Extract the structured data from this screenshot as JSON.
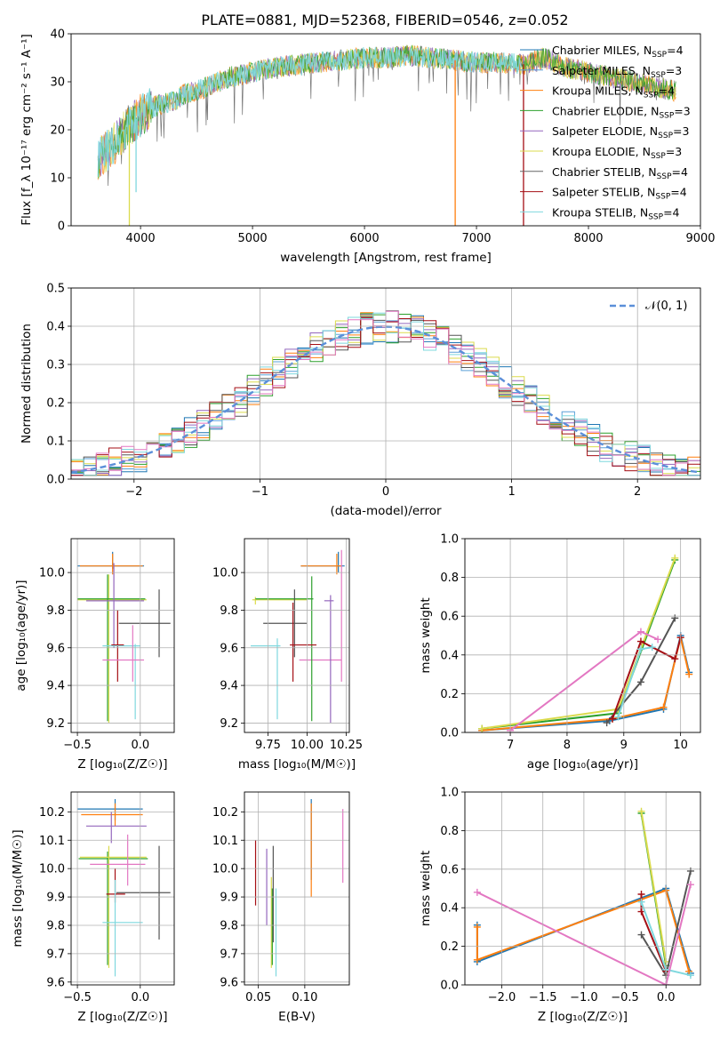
{
  "page_title": "PLATE=0881, MJD=52368, FIBERID=0546, z=0.052",
  "colors": {
    "Chabrier MILES": "#1f77b4",
    "Salpeter MILES": "#5aa0d8",
    "Kroupa MILES": "#ff7f0e",
    "Chabrier ELODIE": "#2ca02c",
    "Salpeter ELODIE": "#9467bd",
    "Kroupa ELODIE": "#dbdb4d",
    "Chabrier STELIB": "#555555",
    "Salpeter STELIB": "#a50f15",
    "Kroupa STELIB": "#7fd8de",
    "pink": "#e377c2",
    "normal_curve": "#5b8fd9"
  },
  "chart_data": [
    {
      "id": "spectrum",
      "type": "line",
      "title": "PLATE=0881, MJD=52368, FIBERID=0546, z=0.052",
      "xlabel": "wavelength [Angstrom, rest frame]",
      "ylabel": "Flux [f_λ 10⁻¹⁷ erg cm⁻² s⁻¹ A⁻¹]",
      "xlim": [
        3380,
        9000
      ],
      "ylim": [
        0,
        40
      ],
      "xticks": [
        "4000",
        "5000",
        "6000",
        "7000",
        "8000",
        "9000"
      ],
      "yticks": [
        "0",
        "10",
        "20",
        "30",
        "40"
      ],
      "grid": false,
      "legend_position": "right",
      "series": [
        {
          "name": "Chabrier MILES",
          "nssp": "4"
        },
        {
          "name": "Salpeter MILES",
          "nssp": "3"
        },
        {
          "name": "Kroupa MILES",
          "nssp": "4"
        },
        {
          "name": "Chabrier ELODIE",
          "nssp": "3"
        },
        {
          "name": "Salpeter ELODIE",
          "nssp": "3"
        },
        {
          "name": "Kroupa ELODIE",
          "nssp": "3"
        },
        {
          "name": "Chabrier STELIB",
          "nssp": "4"
        },
        {
          "name": "Salpeter STELIB",
          "nssp": "4"
        },
        {
          "name": "Kroupa STELIB",
          "nssp": "4"
        }
      ],
      "continuum": {
        "x": [
          3620,
          3700,
          3800,
          3900,
          4000,
          4100,
          4200,
          4300,
          4400,
          4600,
          4800,
          5000,
          5200,
          5400,
          5600,
          5800,
          6000,
          6200,
          6400,
          6600,
          6800,
          7000,
          7200,
          7400,
          7600,
          7800,
          8000,
          8200,
          8400,
          8600,
          8780
        ],
        "y": [
          14,
          15.5,
          18,
          21,
          23,
          24.5,
          25.5,
          26,
          27.5,
          29,
          31,
          32,
          33,
          33.5,
          34,
          34.5,
          35,
          35,
          35.5,
          35,
          34.5,
          34,
          34,
          33.5,
          35,
          33,
          32,
          31,
          30,
          29,
          28
        ]
      },
      "spikes": [
        {
          "x": 3900,
          "y_low": 0,
          "series": "Kroupa ELODIE"
        },
        {
          "x": 3960,
          "y_low": 7,
          "series": "Kroupa STELIB"
        },
        {
          "x": 6810,
          "y_low": 0,
          "series": "Kroupa MILES"
        },
        {
          "x": 7420,
          "y_low": 0,
          "series": "Salpeter STELIB"
        }
      ]
    },
    {
      "id": "residuals",
      "type": "bar",
      "title": "",
      "xlabel": "(data-model)/error",
      "ylabel": "Normed distribution",
      "xlim": [
        -2.5,
        2.5
      ],
      "ylim": [
        0,
        0.5
      ],
      "xticks": [
        "−2",
        "−1",
        "0",
        "1",
        "2"
      ],
      "yticks": [
        "0.0",
        "0.1",
        "0.2",
        "0.3",
        "0.4",
        "0.5"
      ],
      "grid": true,
      "legend_position": "top-right",
      "legend_label": "𝒩(0, 1)",
      "bin_width": 0.1
    },
    {
      "id": "age_vs_Z",
      "type": "scatter",
      "xlabel": "Z [log₁₀(Z/Z☉)]",
      "ylabel": "age  [log₁₀(age/yr)]",
      "xlim": [
        -0.55,
        0.27
      ],
      "ylim": [
        9.15,
        10.18
      ],
      "xticks": [
        "−0.5",
        "0.0"
      ],
      "yticks": [
        "9.2",
        "9.4",
        "9.6",
        "9.8",
        "10.0"
      ],
      "grid": true,
      "points": [
        {
          "series": "Chabrier MILES",
          "x": -0.22,
          "y": 10.035,
          "xlo": -0.5,
          "xhi": 0.03,
          "ylo": 10.02,
          "yhi": 10.11
        },
        {
          "series": "Kroupa MILES",
          "x": -0.22,
          "y": 10.035,
          "xlo": -0.48,
          "xhi": 0.02,
          "ylo": 9.99,
          "yhi": 10.1
        },
        {
          "series": "Kroupa ELODIE",
          "x": -0.25,
          "y": 9.855,
          "xlo": -0.5,
          "xhi": 0.05,
          "ylo": 9.2,
          "yhi": 9.99
        },
        {
          "series": "Chabrier ELODIE",
          "x": -0.26,
          "y": 9.86,
          "xlo": -0.5,
          "xhi": 0.04,
          "ylo": 9.21,
          "yhi": 9.99
        },
        {
          "series": "Salpeter ELODIE",
          "x": -0.21,
          "y": 9.85,
          "xlo": -0.43,
          "xhi": 0.03,
          "ylo": 9.6,
          "yhi": 10.05
        },
        {
          "series": "Chabrier STELIB",
          "x": 0.15,
          "y": 9.73,
          "xlo": -0.17,
          "xhi": 0.24,
          "ylo": 9.55,
          "yhi": 9.91
        },
        {
          "series": "Salpeter STELIB",
          "x": -0.18,
          "y": 9.615,
          "xlo": -0.23,
          "xhi": -0.13,
          "ylo": 9.42,
          "yhi": 9.8
        },
        {
          "series": "Kroupa STELIB",
          "x": -0.04,
          "y": 9.61,
          "xlo": -0.3,
          "xhi": 0.0,
          "ylo": 9.22,
          "yhi": 9.62
        },
        {
          "series": "pink",
          "x": -0.06,
          "y": 9.535,
          "xlo": -0.3,
          "xhi": 0.03,
          "ylo": 9.42,
          "yhi": 9.72
        }
      ]
    },
    {
      "id": "age_vs_mass",
      "type": "scatter",
      "xlabel": "mass [log₁₀(M/M☉)]",
      "ylabel": "",
      "xlim": [
        9.6,
        10.27
      ],
      "ylim": [
        9.15,
        10.18
      ],
      "xticks": [
        "9.75",
        "10.00",
        "10.25"
      ],
      "yticks": [
        "9.2",
        "9.4",
        "9.6",
        "9.8",
        "10.0"
      ],
      "grid": true,
      "points": [
        {
          "series": "Chabrier MILES",
          "x": 10.2,
          "y": 10.035,
          "xlo": 9.96,
          "xhi": 10.24,
          "ylo": 10.0,
          "yhi": 10.11
        },
        {
          "series": "Kroupa MILES",
          "x": 10.19,
          "y": 10.035,
          "xlo": 9.96,
          "xhi": 10.22,
          "ylo": 9.99,
          "yhi": 10.1
        },
        {
          "series": "pink",
          "x": 10.22,
          "y": 9.535,
          "xlo": 9.95,
          "xhi": 10.22,
          "ylo": 9.42,
          "yhi": 10.12
        },
        {
          "series": "Kroupa ELODIE",
          "x": 9.67,
          "y": 9.855,
          "xlo": 9.65,
          "xhi": 10.0,
          "ylo": 9.83,
          "yhi": 9.87
        },
        {
          "series": "Chabrier ELODIE",
          "x": 10.03,
          "y": 9.86,
          "xlo": 9.67,
          "xhi": 10.04,
          "ylo": 9.21,
          "yhi": 9.98
        },
        {
          "series": "Salpeter ELODIE",
          "x": 10.15,
          "y": 9.85,
          "xlo": 10.11,
          "xhi": 10.17,
          "ylo": 9.2,
          "yhi": 9.88
        },
        {
          "series": "Chabrier STELIB",
          "x": 9.92,
          "y": 9.73,
          "xlo": 9.72,
          "xhi": 10.0,
          "ylo": 9.55,
          "yhi": 9.91
        },
        {
          "series": "Salpeter STELIB",
          "x": 9.91,
          "y": 9.615,
          "xlo": 9.89,
          "xhi": 10.06,
          "ylo": 9.42,
          "yhi": 9.84
        },
        {
          "series": "Kroupa STELIB",
          "x": 9.81,
          "y": 9.61,
          "xlo": 9.64,
          "xhi": 9.83,
          "ylo": 9.22,
          "yhi": 9.65
        }
      ]
    },
    {
      "id": "weight_vs_age",
      "type": "line",
      "xlabel": "age  [log₁₀(age/yr)]",
      "ylabel": "mass weight",
      "xlim": [
        6.2,
        10.35
      ],
      "ylim": [
        0,
        1
      ],
      "xticks": [
        "7",
        "8",
        "9",
        "10"
      ],
      "yticks": [
        "0.0",
        "0.2",
        "0.4",
        "0.6",
        "0.8",
        "1.0"
      ],
      "grid": true,
      "series": [
        {
          "name": "Chabrier MILES",
          "x": [
            6.5,
            8.75,
            9.7,
            10.0,
            10.15
          ],
          "y": [
            0.01,
            0.06,
            0.12,
            0.5,
            0.31
          ]
        },
        {
          "name": "Kroupa MILES",
          "x": [
            6.5,
            8.8,
            9.7,
            10.0,
            10.15
          ],
          "y": [
            0.01,
            0.07,
            0.13,
            0.49,
            0.3
          ]
        },
        {
          "name": "Chabrier ELODIE",
          "x": [
            6.5,
            8.9,
            9.9
          ],
          "y": [
            0.02,
            0.1,
            0.89
          ]
        },
        {
          "name": "Kroupa ELODIE",
          "x": [
            6.5,
            8.9,
            9.9
          ],
          "y": [
            0.02,
            0.12,
            0.9
          ]
        },
        {
          "name": "Chabrier STELIB",
          "x": [
            8.7,
            9.3,
            9.9
          ],
          "y": [
            0.05,
            0.26,
            0.59
          ]
        },
        {
          "name": "Salpeter STELIB",
          "x": [
            8.8,
            9.3,
            9.9,
            10.0
          ],
          "y": [
            0.07,
            0.47,
            0.38,
            0.49
          ]
        },
        {
          "name": "Kroupa STELIB",
          "x": [
            8.9,
            9.3,
            9.5
          ],
          "y": [
            0.08,
            0.43,
            0.44
          ]
        },
        {
          "name": "pink",
          "x": [
            7.0,
            9.3,
            9.6
          ],
          "y": [
            0.01,
            0.52,
            0.48
          ]
        }
      ]
    },
    {
      "id": "mass_vs_Z",
      "type": "scatter",
      "xlabel": "Z [log₁₀(Z/Z☉)]",
      "ylabel": "mass [log₁₀(M/M☉)]",
      "xlim": [
        -0.55,
        0.27
      ],
      "ylim": [
        9.59,
        10.27
      ],
      "xticks": [
        "−0.5",
        "0.0"
      ],
      "yticks": [
        "9.6",
        "9.7",
        "9.8",
        "9.9",
        "10.0",
        "10.1",
        "10.2"
      ],
      "grid": true,
      "points": [
        {
          "series": "Chabrier MILES",
          "x": -0.2,
          "y": 10.21,
          "xlo": -0.5,
          "xhi": 0.02,
          "ylo": 10.17,
          "yhi": 10.245
        },
        {
          "series": "Kroupa MILES",
          "x": -0.2,
          "y": 10.19,
          "xlo": -0.47,
          "xhi": 0.02,
          "ylo": 10.15,
          "yhi": 10.23
        },
        {
          "series": "Salpeter ELODIE",
          "x": -0.23,
          "y": 10.15,
          "xlo": -0.43,
          "xhi": 0.05,
          "ylo": 10.09,
          "yhi": 10.2
        },
        {
          "series": "Chabrier ELODIE",
          "x": -0.26,
          "y": 10.035,
          "xlo": -0.49,
          "xhi": 0.06,
          "ylo": 9.66,
          "yhi": 10.06
        },
        {
          "series": "Kroupa ELODIE",
          "x": -0.25,
          "y": 10.04,
          "xlo": -0.48,
          "xhi": 0.05,
          "ylo": 9.65,
          "yhi": 10.08
        },
        {
          "series": "pink",
          "x": -0.1,
          "y": 10.015,
          "xlo": -0.4,
          "xhi": 0.04,
          "ylo": 9.94,
          "yhi": 10.12
        },
        {
          "series": "Salpeter STELIB",
          "x": -0.2,
          "y": 9.91,
          "xlo": -0.27,
          "xhi": -0.12,
          "ylo": 9.88,
          "yhi": 10.0
        },
        {
          "series": "Chabrier STELIB",
          "x": 0.15,
          "y": 9.915,
          "xlo": -0.19,
          "xhi": 0.24,
          "ylo": 9.75,
          "yhi": 10.08
        },
        {
          "series": "Kroupa STELIB",
          "x": -0.2,
          "y": 9.81,
          "xlo": -0.3,
          "xhi": 0.02,
          "ylo": 9.62,
          "yhi": 9.96
        }
      ]
    },
    {
      "id": "mass_vs_ebv",
      "type": "scatter",
      "xlabel": "E(B-V)",
      "ylabel": "",
      "xlim": [
        0.035,
        0.148
      ],
      "ylim": [
        9.59,
        10.27
      ],
      "xticks": [
        "0.05",
        "0.10"
      ],
      "yticks": [
        "9.6",
        "9.7",
        "9.8",
        "9.9",
        "10.0",
        "10.1",
        "10.2"
      ],
      "grid": true,
      "points": [
        {
          "series": "Salpeter STELIB",
          "x": 0.047,
          "ylo": 9.87,
          "yhi": 10.1
        },
        {
          "series": "Salpeter ELODIE",
          "x": 0.059,
          "ylo": 9.8,
          "yhi": 10.07
        },
        {
          "series": "Kroupa ELODIE",
          "x": 0.064,
          "ylo": 9.65,
          "yhi": 9.97
        },
        {
          "series": "Chabrier ELODIE",
          "x": 0.065,
          "ylo": 9.66,
          "yhi": 9.93
        },
        {
          "series": "Chabrier STELIB",
          "x": 0.066,
          "ylo": 9.74,
          "yhi": 10.08
        },
        {
          "series": "Kroupa STELIB",
          "x": 0.069,
          "ylo": 9.62,
          "yhi": 9.93
        },
        {
          "series": "Chabrier MILES",
          "x": 0.107,
          "ylo": 9.96,
          "yhi": 10.245
        },
        {
          "series": "Kroupa MILES",
          "x": 0.107,
          "ylo": 9.9,
          "yhi": 10.23
        },
        {
          "series": "pink",
          "x": 0.141,
          "ylo": 9.95,
          "yhi": 10.21
        }
      ]
    },
    {
      "id": "weight_vs_Z",
      "type": "line",
      "xlabel": "Z [log₁₀(Z/Z☉)]",
      "ylabel": "mass weight",
      "xlim": [
        -2.45,
        0.42
      ],
      "ylim": [
        0,
        1
      ],
      "xticks": [
        "−2.0",
        "−1.5",
        "−1.0",
        "−0.5",
        "0.0"
      ],
      "yticks": [
        "0.0",
        "0.2",
        "0.4",
        "0.6",
        "0.8",
        "1.0"
      ],
      "grid": true,
      "series": [
        {
          "name": "Chabrier MILES",
          "x": [
            -2.3,
            -2.3,
            0.0,
            0.3
          ],
          "y": [
            0.31,
            0.12,
            0.5,
            0.06
          ]
        },
        {
          "name": "Kroupa MILES",
          "x": [
            -2.3,
            -2.3,
            0.0,
            0.28
          ],
          "y": [
            0.3,
            0.13,
            0.49,
            0.07
          ]
        },
        {
          "name": "Chabrier ELODIE",
          "x": [
            -0.3,
            0.0
          ],
          "y": [
            0.89,
            0.1
          ]
        },
        {
          "name": "Kroupa ELODIE",
          "x": [
            -0.3,
            0.0
          ],
          "y": [
            0.9,
            0.12
          ]
        },
        {
          "name": "Chabrier STELIB",
          "x": [
            -0.3,
            0.0,
            0.3
          ],
          "y": [
            0.26,
            0.05,
            0.59
          ]
        },
        {
          "name": "Salpeter STELIB",
          "x": [
            -0.3,
            -0.3,
            0.0
          ],
          "y": [
            0.47,
            0.38,
            0.07
          ]
        },
        {
          "name": "Kroupa STELIB",
          "x": [
            -0.3,
            0.0,
            0.3
          ],
          "y": [
            0.43,
            0.08,
            0.05
          ]
        },
        {
          "name": "pink",
          "x": [
            -2.3,
            0.0,
            0.3
          ],
          "y": [
            0.48,
            0.0,
            0.52
          ]
        }
      ]
    }
  ]
}
